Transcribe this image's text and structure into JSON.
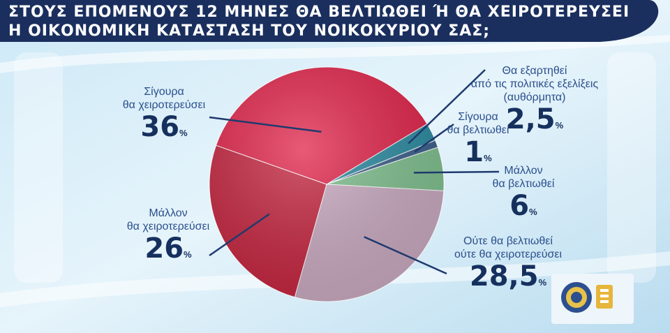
{
  "title": {
    "line1": "ΣΤΟΥΣ ΕΠΟΜΕΝΟΥΣ 12 ΜΗΝΕΣ ΘΑ ΒΕΛΤΙΩΘΕΙ Ή ΘΑ ΧΕΙΡΟΤΕΡΕΥΣΕΙ",
    "line2": "Η ΟΙΚΟΝΟΜΙΚΗ ΚΑΤΑΣΤΑΣΗ ΤΟΥ ΝΟΙΚΟΚΥΡΙΟΥ ΣΑΣ;"
  },
  "chart_data": {
    "type": "pie",
    "title": "ΣΤΟΥΣ ΕΠΟΜΕΝΟΥΣ 12 ΜΗΝΕΣ ΘΑ ΒΕΛΤΙΩΘΕΙ Ή ΘΑ ΧΕΙΡΟΤΕΡΕΥΣΕΙ Η ΟΙΚΟΝΟΜΙΚΗ ΚΑΤΑΣΤΑΣΗ ΤΟΥ ΝΟΙΚΟΚΥΡΙΟΥ ΣΑΣ;",
    "unit": "%",
    "slices": [
      {
        "label_line1": "Θα εξαρτηθεί",
        "label_line2": "από τις πολιτικές εξελίξεις",
        "label_line3": "(αυθόρμητα)",
        "value": 2.5,
        "display": "2,5",
        "color": "#2a8aa0"
      },
      {
        "label_line1": "Σίγουρα",
        "label_line2": "θα βελτιωθεί",
        "label_line3": "",
        "value": 1,
        "display": "1",
        "color": "#3a5f8a"
      },
      {
        "label_line1": "Μάλλον",
        "label_line2": "θα βελτιωθεί",
        "label_line3": "",
        "value": 6,
        "display": "6",
        "color": "#7fbf8e"
      },
      {
        "label_line1": "Ούτε θα βελτιωθεί",
        "label_line2": "ούτε θα χειροτερεύσει",
        "label_line3": "",
        "value": 28.5,
        "display": "28,5",
        "color": "#c9a9c0"
      },
      {
        "label_line1": "Μάλλον",
        "label_line2": "θα χειροτερεύσει",
        "label_line3": "",
        "value": 26,
        "display": "26",
        "color": "#c4253f"
      },
      {
        "label_line1": "Σίγουρα",
        "label_line2": "θα χειροτερεύσει",
        "label_line3": "",
        "value": 36,
        "display": "36",
        "color": "#e0244a"
      }
    ]
  },
  "colors": {
    "title_bar": "#1a2f5e",
    "label_text": "#2b4f8c",
    "leader_line": "#1e3a6e"
  }
}
